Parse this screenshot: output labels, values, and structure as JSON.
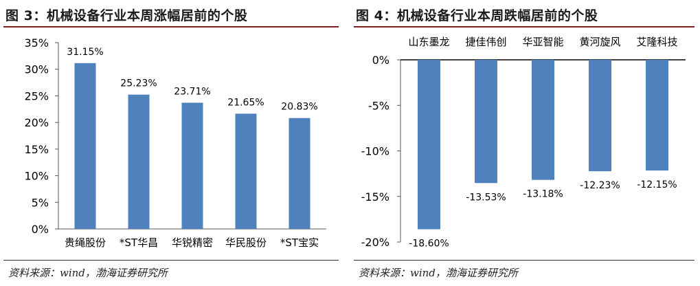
{
  "figures": [
    {
      "title": "图 3：机械设备行业本周涨幅居前的个股",
      "source": "资料来源：wind，渤海证券研究所"
    },
    {
      "title": "图 4：机械设备行业本周跌幅居前的个股",
      "source": "资料来源：wind，渤海证券研究所"
    }
  ],
  "chart_data": [
    {
      "type": "bar",
      "title": "",
      "xlabel": "",
      "ylabel": "",
      "categories": [
        "贵绳股份",
        "*ST华昌",
        "华锐精密",
        "华民股份",
        "*ST宝实"
      ],
      "values": [
        31.15,
        25.23,
        23.71,
        21.65,
        20.83
      ],
      "data_labels": [
        "31.15%",
        "25.23%",
        "23.71%",
        "21.65%",
        "20.83%"
      ],
      "ylim": [
        0,
        35
      ],
      "yticks": [
        0,
        5,
        10,
        15,
        20,
        25,
        30,
        35
      ],
      "ytick_labels": [
        "0%",
        "5%",
        "10%",
        "15%",
        "20%",
        "25%",
        "30%",
        "35%"
      ],
      "grid": false,
      "bar_color": "#4f81bd"
    },
    {
      "type": "bar",
      "title": "",
      "xlabel": "",
      "ylabel": "",
      "categories": [
        "山东墨龙",
        "捷佳伟创",
        "华亚智能",
        "黄河旋风",
        "艾隆科技"
      ],
      "values": [
        -18.6,
        -13.53,
        -13.18,
        -12.23,
        -12.15
      ],
      "data_labels": [
        "-18.60%",
        "-13.53%",
        "-13.18%",
        "-12.23%",
        "-12.15%"
      ],
      "ylim": [
        -20,
        0
      ],
      "yticks": [
        0,
        -5,
        -10,
        -15,
        -20
      ],
      "ytick_labels": [
        "0%",
        "-5%",
        "-10%",
        "-15%",
        "-20%"
      ],
      "grid": false,
      "bar_color": "#4f81bd"
    }
  ]
}
